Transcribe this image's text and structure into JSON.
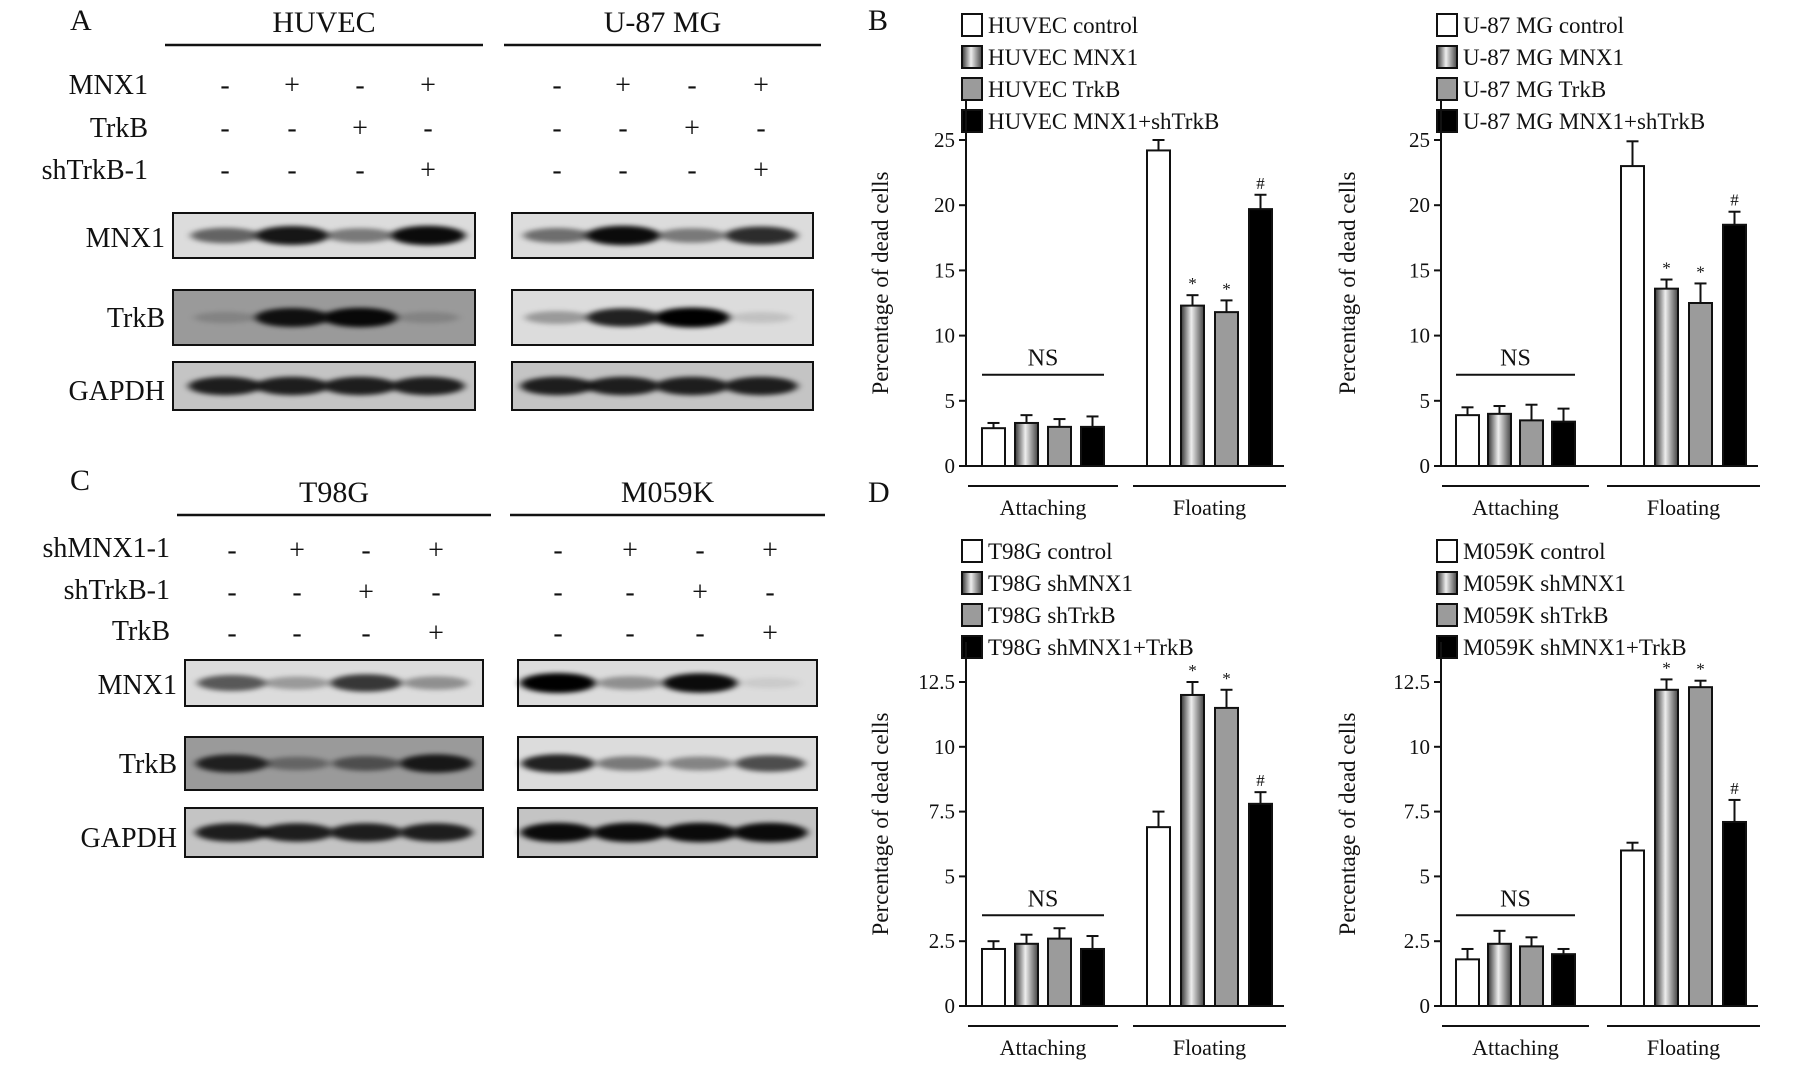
{
  "panels": {
    "A": {
      "letter": "A",
      "blots": [
        {
          "title": "HUVEC",
          "treatments": [
            {
              "label": "MNX1",
              "signs": [
                "-",
                "+",
                "-",
                "+"
              ]
            },
            {
              "label": "TrkB",
              "signs": [
                "-",
                "-",
                "+",
                "-"
              ]
            },
            {
              "label": "shTrkB-1",
              "signs": [
                "-",
                "-",
                "-",
                "+"
              ]
            }
          ],
          "rows": [
            {
              "label": "MNX1",
              "intensities": [
                0.55,
                0.9,
                0.45,
                0.95
              ]
            },
            {
              "label": "TrkB",
              "intensities": [
                0.15,
                0.9,
                0.95,
                0.15
              ]
            },
            {
              "label": "GAPDH",
              "intensities": [
                0.85,
                0.85,
                0.85,
                0.85
              ]
            }
          ]
        },
        {
          "title": "U-87 MG",
          "treatments": [
            {
              "label": "",
              "signs": [
                "-",
                "+",
                "-",
                "+"
              ]
            },
            {
              "label": "",
              "signs": [
                "-",
                "-",
                "+",
                "-"
              ]
            },
            {
              "label": "",
              "signs": [
                "-",
                "-",
                "-",
                "+"
              ]
            }
          ],
          "rows": [
            {
              "label": "",
              "intensities": [
                0.5,
                0.95,
                0.45,
                0.8
              ]
            },
            {
              "label": "",
              "intensities": [
                0.3,
                0.85,
                1.0,
                0.12
              ]
            },
            {
              "label": "",
              "intensities": [
                0.85,
                0.85,
                0.85,
                0.85
              ]
            }
          ]
        }
      ]
    },
    "C": {
      "letter": "C",
      "blots": [
        {
          "title": "T98G",
          "treatments": [
            {
              "label": "shMNX1-1",
              "signs": [
                "-",
                "+",
                "-",
                "+"
              ]
            },
            {
              "label": "shTrkB-1",
              "signs": [
                "-",
                "-",
                "+",
                "-"
              ]
            },
            {
              "label": "TrkB",
              "signs": [
                "-",
                "-",
                "-",
                "+"
              ]
            }
          ],
          "rows": [
            {
              "label": "MNX1",
              "intensities": [
                0.6,
                0.3,
                0.75,
                0.35
              ]
            },
            {
              "label": "TrkB",
              "intensities": [
                0.8,
                0.35,
                0.5,
                0.85
              ]
            },
            {
              "label": "GAPDH",
              "intensities": [
                0.85,
                0.85,
                0.85,
                0.85
              ]
            }
          ]
        },
        {
          "title": "M059K",
          "treatments": [
            {
              "label": "",
              "signs": [
                "-",
                "+",
                "-",
                "+"
              ]
            },
            {
              "label": "",
              "signs": [
                "-",
                "-",
                "+",
                "-"
              ]
            },
            {
              "label": "",
              "signs": [
                "-",
                "-",
                "-",
                "+"
              ]
            }
          ],
          "rows": [
            {
              "label": "",
              "intensities": [
                1.0,
                0.35,
                0.95,
                0.05
              ]
            },
            {
              "label": "",
              "intensities": [
                0.85,
                0.45,
                0.4,
                0.65
              ]
            },
            {
              "label": "",
              "intensities": [
                0.95,
                0.95,
                0.95,
                0.95
              ]
            }
          ]
        }
      ]
    },
    "B_letter": "B",
    "D_letter": "D"
  },
  "chart_data": [
    {
      "type": "bar",
      "panel": "B",
      "ylabel": "Percentage of dead cells",
      "categories": [
        "Attaching",
        "Floating"
      ],
      "ylim": [
        0,
        25
      ],
      "yticks": [
        "0",
        "5",
        "10",
        "15",
        "20",
        "25"
      ],
      "ytick_values": [
        0,
        5,
        10,
        15,
        20,
        25
      ],
      "ns_label": "NS",
      "series": [
        {
          "name": "HUVEC control",
          "values": [
            2.9,
            24.2
          ],
          "errors": [
            0.4,
            0.8
          ],
          "marks": [
            "",
            ""
          ]
        },
        {
          "name": "HUVEC MNX1",
          "values": [
            3.3,
            12.3
          ],
          "errors": [
            0.6,
            0.8
          ],
          "marks": [
            "",
            "*"
          ]
        },
        {
          "name": "HUVEC TrkB",
          "values": [
            3.0,
            11.8
          ],
          "errors": [
            0.6,
            0.9
          ],
          "marks": [
            "",
            "*"
          ]
        },
        {
          "name": "HUVEC MNX1+shTrkB",
          "values": [
            3.0,
            19.7
          ],
          "errors": [
            0.8,
            1.1
          ],
          "marks": [
            "",
            "#"
          ]
        }
      ]
    },
    {
      "type": "bar",
      "panel": "B",
      "ylabel": "Percentage of dead cells",
      "categories": [
        "Attaching",
        "Floating"
      ],
      "ylim": [
        0,
        25
      ],
      "yticks": [
        "0",
        "5",
        "10",
        "15",
        "20",
        "25"
      ],
      "ytick_values": [
        0,
        5,
        10,
        15,
        20,
        25
      ],
      "ns_label": "NS",
      "series": [
        {
          "name": "U-87 MG control",
          "values": [
            3.9,
            23.0
          ],
          "errors": [
            0.6,
            1.9
          ],
          "marks": [
            "",
            ""
          ]
        },
        {
          "name": "U-87 MG MNX1",
          "values": [
            4.0,
            13.6
          ],
          "errors": [
            0.6,
            0.7
          ],
          "marks": [
            "",
            "*"
          ]
        },
        {
          "name": "U-87 MG TrkB",
          "values": [
            3.5,
            12.5
          ],
          "errors": [
            1.2,
            1.5
          ],
          "marks": [
            "",
            "*"
          ]
        },
        {
          "name": "U-87 MG MNX1+shTrkB",
          "values": [
            3.4,
            18.5
          ],
          "errors": [
            1.0,
            1.0
          ],
          "marks": [
            "",
            "#"
          ]
        }
      ]
    },
    {
      "type": "bar",
      "panel": "D",
      "ylabel": "Percentage of dead cells",
      "categories": [
        "Attaching",
        "Floating"
      ],
      "ylim": [
        0,
        12.5
      ],
      "yticks": [
        "0",
        "2.5",
        "5",
        "7.5",
        "10",
        "12.5"
      ],
      "ytick_values": [
        0,
        2.5,
        5,
        7.5,
        10,
        12.5
      ],
      "ns_label": "NS",
      "series": [
        {
          "name": "T98G control",
          "values": [
            2.2,
            6.9
          ],
          "errors": [
            0.3,
            0.6
          ],
          "marks": [
            "",
            ""
          ]
        },
        {
          "name": "T98G shMNX1",
          "values": [
            2.4,
            12.0
          ],
          "errors": [
            0.35,
            0.5
          ],
          "marks": [
            "",
            "*"
          ]
        },
        {
          "name": "T98G shTrkB",
          "values": [
            2.6,
            11.5
          ],
          "errors": [
            0.4,
            0.7
          ],
          "marks": [
            "",
            "*"
          ]
        },
        {
          "name": "T98G shMNX1+TrkB",
          "values": [
            2.2,
            7.8
          ],
          "errors": [
            0.5,
            0.45
          ],
          "marks": [
            "",
            "#"
          ]
        }
      ]
    },
    {
      "type": "bar",
      "panel": "D",
      "ylabel": "Percentage of dead cells",
      "categories": [
        "Attaching",
        "Floating"
      ],
      "ylim": [
        0,
        12.5
      ],
      "yticks": [
        "0",
        "2.5",
        "5",
        "7.5",
        "10",
        "12.5"
      ],
      "ytick_values": [
        0,
        2.5,
        5,
        7.5,
        10,
        12.5
      ],
      "ns_label": "NS",
      "series": [
        {
          "name": "M059K control",
          "values": [
            1.8,
            6.0
          ],
          "errors": [
            0.4,
            0.3
          ],
          "marks": [
            "",
            ""
          ]
        },
        {
          "name": "M059K shMNX1",
          "values": [
            2.4,
            12.2
          ],
          "errors": [
            0.5,
            0.4
          ],
          "marks": [
            "",
            "*"
          ]
        },
        {
          "name": "M059K shTrkB",
          "values": [
            2.3,
            12.3
          ],
          "errors": [
            0.35,
            0.25
          ],
          "marks": [
            "",
            "*"
          ]
        },
        {
          "name": "M059K shMNX1+TrkB",
          "values": [
            2.0,
            7.1
          ],
          "errors": [
            0.2,
            0.85
          ],
          "marks": [
            "",
            "#"
          ]
        }
      ]
    }
  ]
}
